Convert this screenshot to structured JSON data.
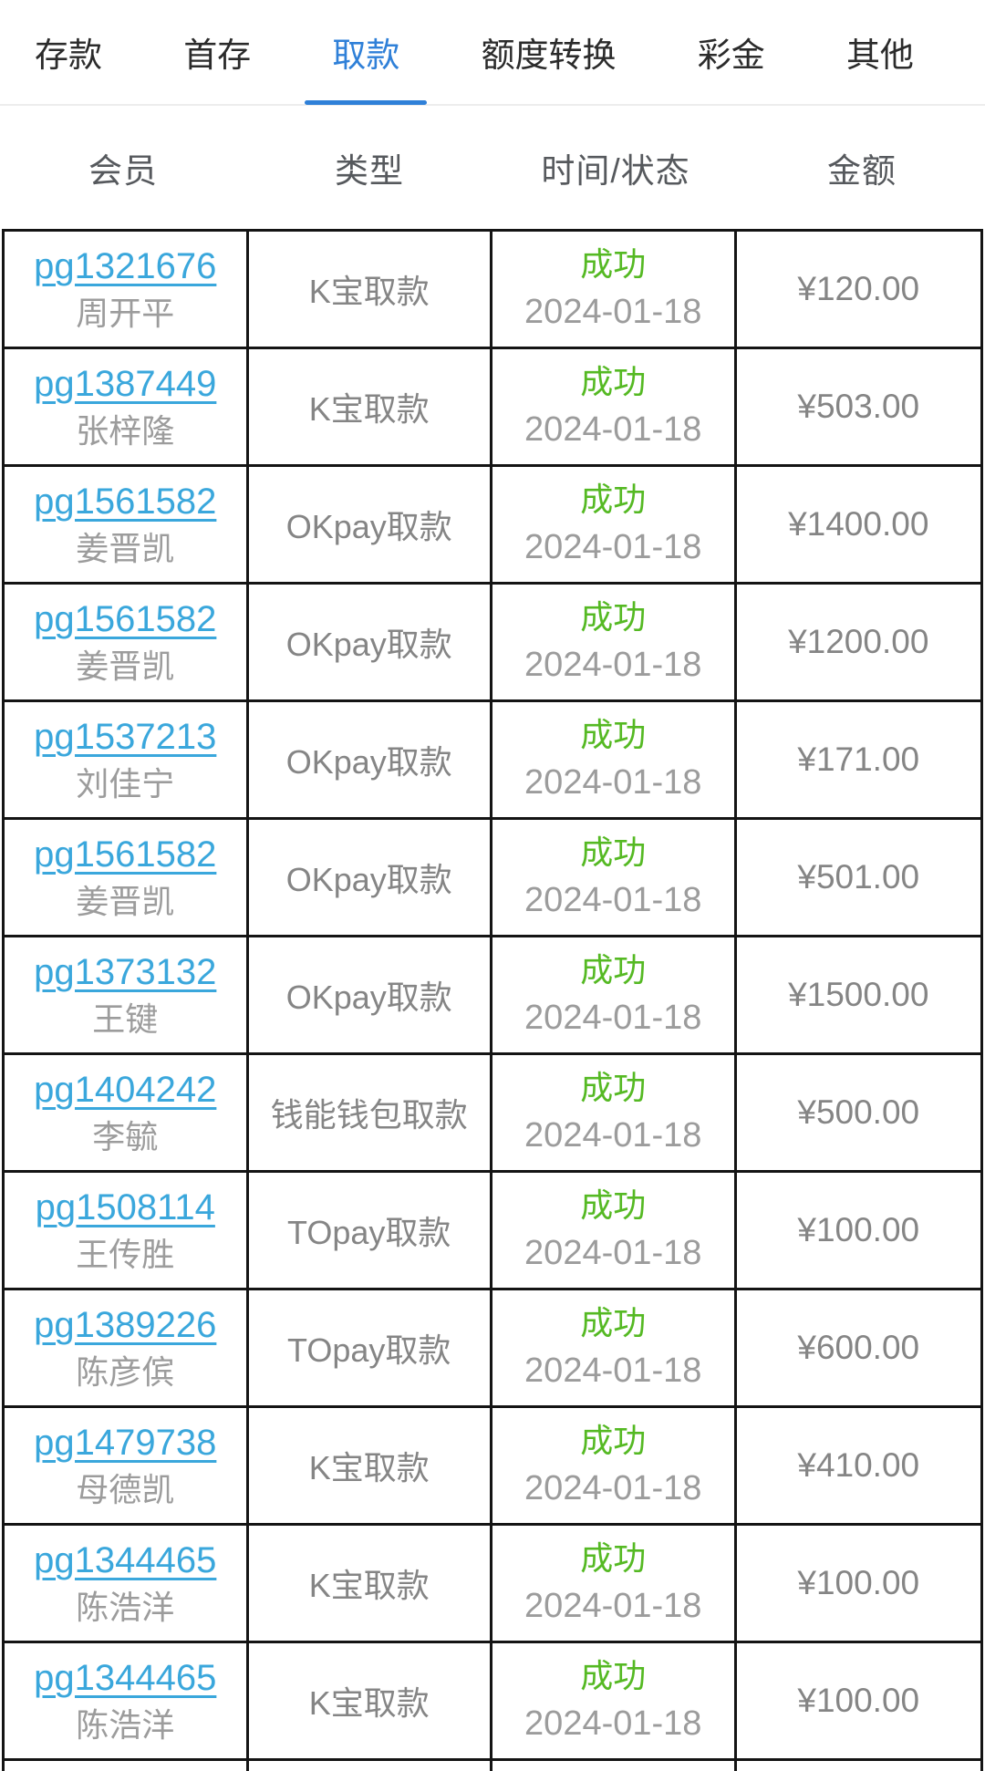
{
  "tabs": [
    {
      "label": "存款",
      "active": false
    },
    {
      "label": "首存",
      "active": false
    },
    {
      "label": "取款",
      "active": true
    },
    {
      "label": "额度转换",
      "active": false
    },
    {
      "label": "彩金",
      "active": false
    },
    {
      "label": "其他",
      "active": false
    }
  ],
  "table": {
    "headers": [
      "会员",
      "类型",
      "时间/状态",
      "金额"
    ],
    "rows": [
      {
        "member_id": "pg1321676",
        "member_name": "周开平",
        "type": "K宝取款",
        "status": "成功",
        "date": "2024-01-18",
        "amount": "¥120.00"
      },
      {
        "member_id": "pg1387449",
        "member_name": "张梓隆",
        "type": "K宝取款",
        "status": "成功",
        "date": "2024-01-18",
        "amount": "¥503.00"
      },
      {
        "member_id": "pg1561582",
        "member_name": "姜晋凯",
        "type": "OKpay取款",
        "status": "成功",
        "date": "2024-01-18",
        "amount": "¥1400.00"
      },
      {
        "member_id": "pg1561582",
        "member_name": "姜晋凯",
        "type": "OKpay取款",
        "status": "成功",
        "date": "2024-01-18",
        "amount": "¥1200.00"
      },
      {
        "member_id": "pg1537213",
        "member_name": "刘佳宁",
        "type": "OKpay取款",
        "status": "成功",
        "date": "2024-01-18",
        "amount": "¥171.00"
      },
      {
        "member_id": "pg1561582",
        "member_name": "姜晋凯",
        "type": "OKpay取款",
        "status": "成功",
        "date": "2024-01-18",
        "amount": "¥501.00"
      },
      {
        "member_id": "pg1373132",
        "member_name": "王键",
        "type": "OKpay取款",
        "status": "成功",
        "date": "2024-01-18",
        "amount": "¥1500.00"
      },
      {
        "member_id": "pg1404242",
        "member_name": "李毓",
        "type": "钱能钱包取款",
        "status": "成功",
        "date": "2024-01-18",
        "amount": "¥500.00"
      },
      {
        "member_id": "pg1508114",
        "member_name": "王传胜",
        "type": "TOpay取款",
        "status": "成功",
        "date": "2024-01-18",
        "amount": "¥100.00"
      },
      {
        "member_id": "pg1389226",
        "member_name": "陈彦傧",
        "type": "TOpay取款",
        "status": "成功",
        "date": "2024-01-18",
        "amount": "¥600.00"
      },
      {
        "member_id": "pg1479738",
        "member_name": "母德凯",
        "type": "K宝取款",
        "status": "成功",
        "date": "2024-01-18",
        "amount": "¥410.00"
      },
      {
        "member_id": "pg1344465",
        "member_name": "陈浩洋",
        "type": "K宝取款",
        "status": "成功",
        "date": "2024-01-18",
        "amount": "¥100.00"
      },
      {
        "member_id": "pg1344465",
        "member_name": "陈浩洋",
        "type": "K宝取款",
        "status": "成功",
        "date": "2024-01-18",
        "amount": "¥100.00"
      }
    ]
  },
  "colors": {
    "tab_active": "#2f80d8",
    "link_blue": "#3aa7dc",
    "success_green": "#55b923",
    "border_dark": "#141414"
  }
}
